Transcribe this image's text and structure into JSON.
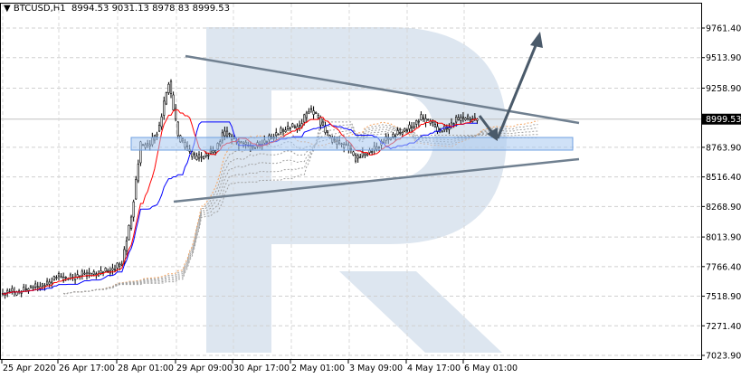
{
  "header": {
    "symbol": "BTCUSD,H1",
    "ohlc": "8994.53 9031.13 8978.83 8999.53"
  },
  "colors": {
    "candle": "#000000",
    "tenkan": "#ff0000",
    "kijun": "#0000ff",
    "senkou_a": "#f4a460",
    "senkou_b": "#a0a0a0",
    "trendline": "#708090",
    "zone": "#a8c8f0",
    "watermark": "#dde6f0",
    "current_price_bg": "#000000"
  },
  "chart_data": {
    "type": "candlestick",
    "title": "BTCUSD,H1",
    "ylim": [
      7023.9,
      9900
    ],
    "y_ticks": [
      "9761.40",
      "9513.90",
      "9258.90",
      "8999.53",
      "8763.90",
      "8516.40",
      "8268.90",
      "8013.90",
      "7766.40",
      "7518.90",
      "7271.40",
      "7023.90"
    ],
    "current_price": "8999.53",
    "x_ticks": [
      "25 Apr 2020",
      "26 Apr 17:00",
      "28 Apr 01:00",
      "29 Apr 09:00",
      "30 Apr 17:00",
      "2 May 01:00",
      "3 May 09:00",
      "4 May 17:00",
      "6 May 01:00"
    ],
    "close": [
      7538,
      7561,
      7550,
      7591,
      7600,
      7620,
      7689,
      7667,
      7680,
      7712,
      7700,
      7727,
      7740,
      7803,
      8181,
      8786,
      8786,
      8937,
      9315,
      8862,
      8748,
      8673,
      8700,
      8748,
      8899,
      8820,
      8790,
      8760,
      8800,
      8850,
      8899,
      8937,
      8937,
      9088,
      9013,
      8862,
      8800,
      8780,
      8673,
      8710,
      8748,
      8820,
      8862,
      8899,
      8937,
      9013,
      8975,
      8899,
      8937,
      9013,
      9003,
      8999.53
    ],
    "ichimoku": true,
    "annotations": {
      "triangle_upper": [
        [
          9560
        ],
        [
          9000
        ]
      ],
      "triangle_lower": [
        [
          8430
        ],
        [
          8780
        ]
      ],
      "support_zone": [
        8740,
        8846
      ],
      "forecast": "dip to ~8800 then breakout toward ~9700"
    }
  }
}
